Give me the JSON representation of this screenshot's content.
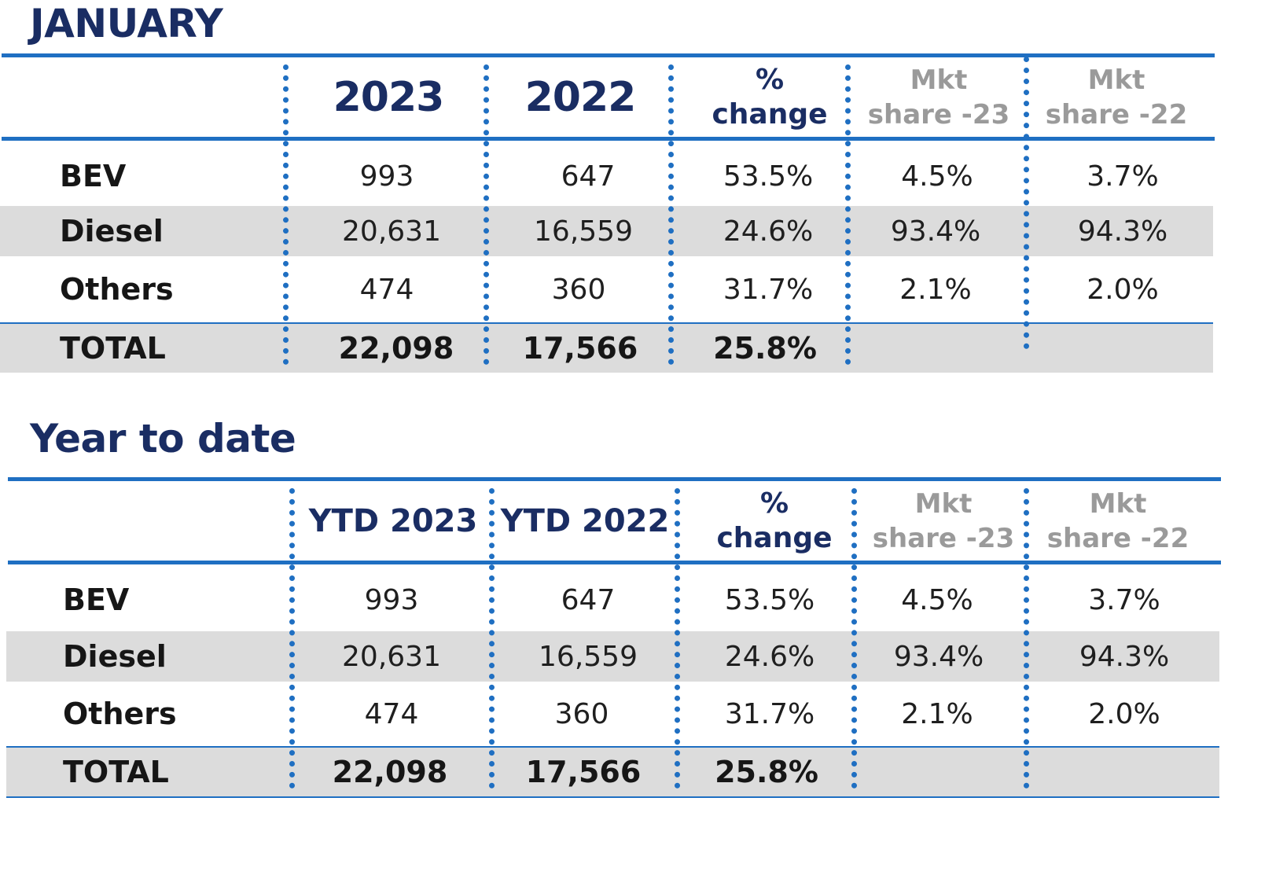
{
  "chart_data": [
    {
      "type": "table",
      "title": "JANUARY",
      "columns": [
        "",
        "2023",
        "2022",
        "% change",
        "Mkt share -23",
        "Mkt share -22"
      ],
      "header": {
        "c1": "2023",
        "c2": "2022",
        "pct_line1": "%",
        "pct_line2": "change",
        "mkt23_line1": "Mkt",
        "mkt23_line2": "share -23",
        "mkt22_line1": "Mkt",
        "mkt22_line2": "share -22"
      },
      "rows": [
        {
          "label": "BEV",
          "c1": "993",
          "c2": "647",
          "pct": "53.5%",
          "mkt23": "4.5%",
          "mkt22": "3.7%"
        },
        {
          "label": "Diesel",
          "c1": "20,631",
          "c2": "16,559",
          "pct": "24.6%",
          "mkt23": "93.4%",
          "mkt22": "94.3%"
        },
        {
          "label": "Others",
          "c1": "474",
          "c2": "360",
          "pct": "31.7%",
          "mkt23": "2.1%",
          "mkt22": "2.0%"
        },
        {
          "label": "TOTAL",
          "c1": "22,098",
          "c2": "17,566",
          "pct": "25.8%",
          "mkt23": "",
          "mkt22": ""
        }
      ]
    },
    {
      "type": "table",
      "title": "Year to date",
      "columns": [
        "",
        "YTD 2023",
        "YTD 2022",
        "% change",
        "Mkt share -23",
        "Mkt share -22"
      ],
      "header": {
        "c1": "YTD 2023",
        "c2": "YTD 2022",
        "pct_line1": "%",
        "pct_line2": "change",
        "mkt23_line1": "Mkt",
        "mkt23_line2": "share -23",
        "mkt22_line1": "Mkt",
        "mkt22_line2": "share -22"
      },
      "rows": [
        {
          "label": "BEV",
          "c1": "993",
          "c2": "647",
          "pct": "53.5%",
          "mkt23": "4.5%",
          "mkt22": "3.7%"
        },
        {
          "label": "Diesel",
          "c1": "20,631",
          "c2": "16,559",
          "pct": "24.6%",
          "mkt23": "93.4%",
          "mkt22": "94.3%"
        },
        {
          "label": "Others",
          "c1": "474",
          "c2": "360",
          "pct": "31.7%",
          "mkt23": "2.1%",
          "mkt22": "2.0%"
        },
        {
          "label": "TOTAL",
          "c1": "22,098",
          "c2": "17,566",
          "pct": "25.8%",
          "mkt23": "",
          "mkt22": ""
        }
      ]
    }
  ]
}
